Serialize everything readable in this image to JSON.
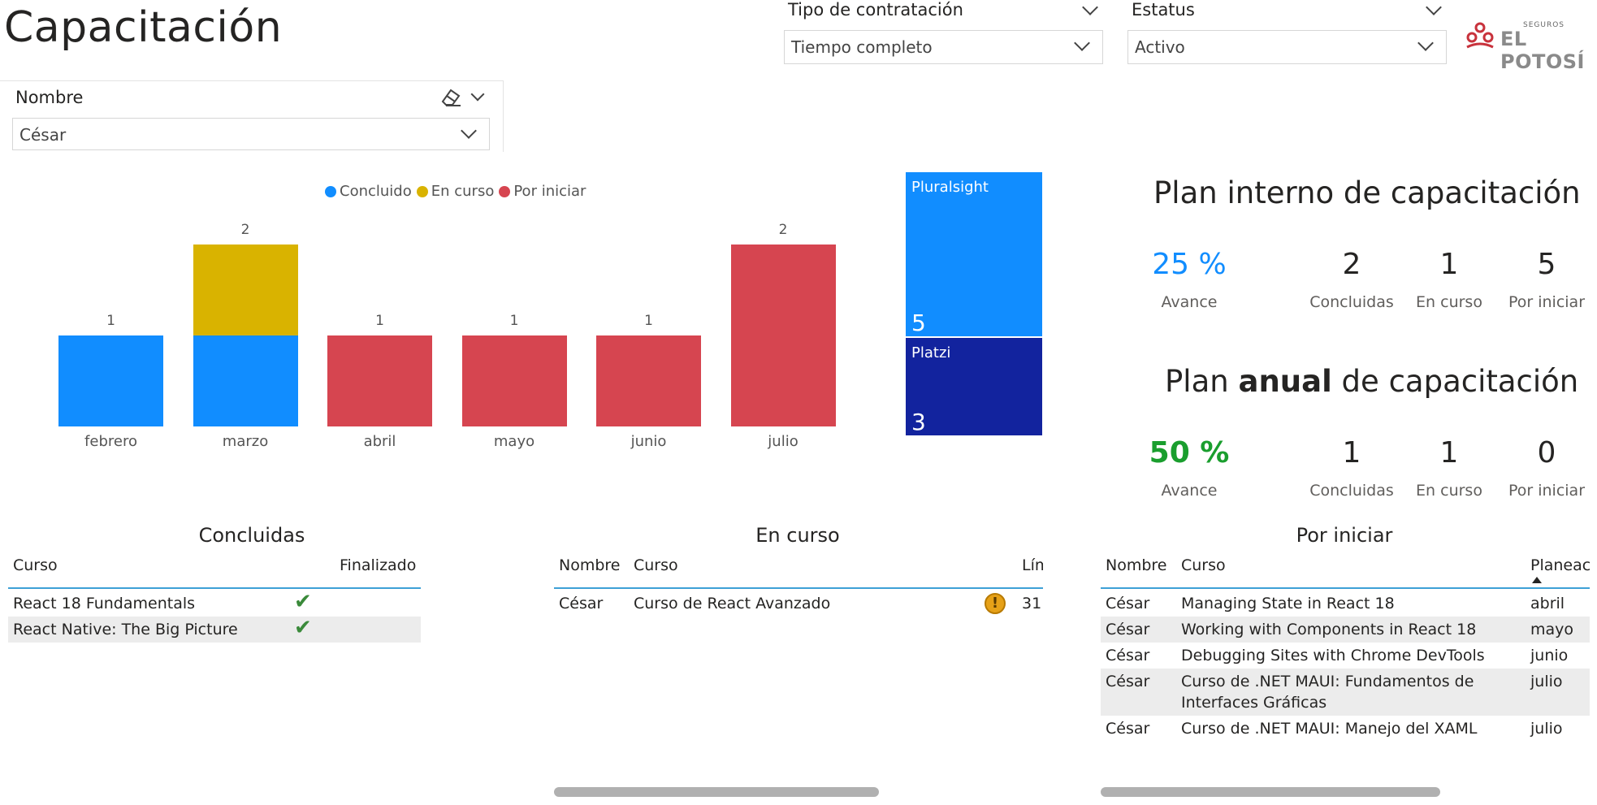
{
  "page": {
    "title": "Capacitación"
  },
  "filters": {
    "tipo": {
      "label": "Tipo de contratación",
      "value": "Tiempo completo"
    },
    "estatus": {
      "label": "Estatus",
      "value": "Activo"
    },
    "nombre": {
      "label": "Nombre",
      "value": "César"
    }
  },
  "logo": {
    "small": "SEGUROS",
    "big": "EL POTOSÍ"
  },
  "colors": {
    "concluido": "#118dff",
    "en_curso": "#d9b300",
    "por_iniciar": "#d64550",
    "platzi": "#12239e",
    "kpi_blue": "#118dff",
    "kpi_green": "#1a9e2e"
  },
  "chart_data": {
    "type": "bar",
    "stacked": true,
    "categories": [
      "febrero",
      "marzo",
      "abril",
      "mayo",
      "junio",
      "julio"
    ],
    "series": [
      {
        "name": "Concluido",
        "values": [
          1,
          1,
          0,
          0,
          0,
          0
        ]
      },
      {
        "name": "En curso",
        "values": [
          0,
          1,
          0,
          0,
          0,
          0
        ]
      },
      {
        "name": "Por iniciar",
        "values": [
          0,
          0,
          1,
          1,
          1,
          2
        ]
      }
    ],
    "totals": [
      "1",
      "2",
      "1",
      "1",
      "1",
      "2"
    ],
    "legend_position": "top",
    "ylim": [
      0,
      2
    ]
  },
  "treemap": {
    "items": [
      {
        "name": "Pluralsight",
        "value": "5"
      },
      {
        "name": "Platzi",
        "value": "3"
      }
    ]
  },
  "plan_interno": {
    "title": "Plan interno de capacitación",
    "avance": "25 %",
    "avance_label": "Avance",
    "concluidas": "2",
    "concluidas_label": "Concluidas",
    "en_curso": "1",
    "en_curso_label": "En curso",
    "por_iniciar": "5",
    "por_iniciar_label": "Por iniciar"
  },
  "plan_anual": {
    "title_pre": "Plan ",
    "title_bold": "anual",
    "title_post": " de capacitación",
    "avance": "50 %",
    "avance_label": "Avance",
    "concluidas": "1",
    "concluidas_label": "Concluidas",
    "en_curso": "1",
    "en_curso_label": "En curso",
    "por_iniciar": "0",
    "por_iniciar_label": "Por iniciar"
  },
  "tabla_concluidas": {
    "title": "Concluidas",
    "headers": [
      "Curso",
      "Finalizado"
    ],
    "rows": [
      {
        "curso": "React 18 Fundamentals"
      },
      {
        "curso": "React Native: The Big Picture"
      }
    ]
  },
  "tabla_en_curso": {
    "title": "En curso",
    "headers": [
      "Nombre",
      "Curso",
      "Lím"
    ],
    "rows": [
      {
        "nombre": "César",
        "curso": "Curso de React Avanzado",
        "limite": "31"
      }
    ]
  },
  "tabla_por_iniciar": {
    "title": "Por iniciar",
    "headers": [
      "Nombre",
      "Curso",
      "Planeaci"
    ],
    "rows": [
      {
        "nombre": "César",
        "curso": "Managing State in React 18",
        "mes": "abril"
      },
      {
        "nombre": "César",
        "curso": "Working with Components in React 18",
        "mes": "mayo"
      },
      {
        "nombre": "César",
        "curso": "Debugging Sites with Chrome DevTools",
        "mes": "junio"
      },
      {
        "nombre": "César",
        "curso": "Curso de .NET MAUI: Fundamentos de",
        "curso2": "Interfaces Gráficas",
        "mes": "julio"
      },
      {
        "nombre": "César",
        "curso": "Curso de .NET MAUI: Manejo del XAML",
        "mes": "julio"
      }
    ]
  }
}
